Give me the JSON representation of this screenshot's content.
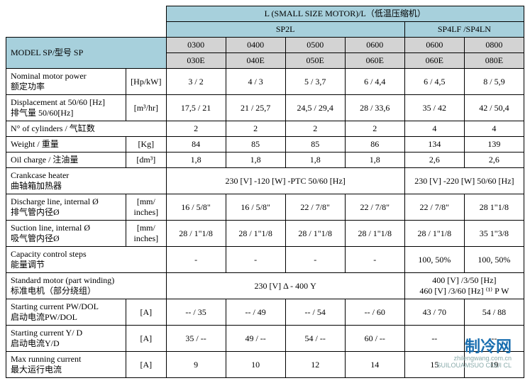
{
  "colors": {
    "header_blue": "#a7d0dc",
    "header_gray": "#d3d3d3",
    "border": "#000000",
    "background": "#ffffff"
  },
  "header": {
    "main_title": "L (SMALL SIZE MOTOR)/L（低温压缩机）",
    "series": [
      "SP2L",
      "SP4LF /SP4LN"
    ],
    "model_label": "MODEL SP/型号 SP",
    "col_codes_top": [
      "0300",
      "0400",
      "0500",
      "0600",
      "0600",
      "0800"
    ],
    "col_codes_bot": [
      "030E",
      "040E",
      "050E",
      "060E",
      "060E",
      "080E"
    ]
  },
  "rows": {
    "nominal_power": {
      "label": "Nominal motor power\n额定功率",
      "unit": "[Hp/kW]",
      "vals": [
        "3 / 2",
        "4 / 3",
        "5 / 3,7",
        "6 / 4,4",
        "6 / 4,5",
        "8 / 5,9"
      ]
    },
    "displacement": {
      "label": "Displacement at 50/60 [Hz]\n排气量 50/60[Hz]",
      "unit": "[m³/hr]",
      "vals": [
        "17,5 / 21",
        "21 / 25,7",
        "24,5 / 29,4",
        "28 / 33,6",
        "35 / 42",
        "42 / 50,4"
      ]
    },
    "cylinders": {
      "label": "N° of cylinders / 气缸数",
      "vals": [
        "2",
        "2",
        "2",
        "2",
        "4",
        "4"
      ]
    },
    "weight": {
      "label": "Weight / 重量",
      "unit": "[Kg]",
      "vals": [
        "84",
        "85",
        "85",
        "86",
        "134",
        "139"
      ]
    },
    "oil": {
      "label": "Oil charge / 注油量",
      "unit": "[dm³]",
      "vals": [
        "1,8",
        "1,8",
        "1,8",
        "1,8",
        "2,6",
        "2,6"
      ]
    },
    "crankcase": {
      "label": "Crankcase heater\n曲轴箱加热器",
      "left": "230 [V] -120 [W] -PTC 50/60 [Hz]",
      "right": "230 [V] -220 [W] 50/60 [Hz]"
    },
    "discharge": {
      "label": "Discharge line, internal Ø\n排气管内径Ø",
      "unit": "[mm/\ninches]",
      "vals": [
        "16 / 5/8\"",
        "16 / 5/8\"",
        "22 / 7/8\"",
        "22 / 7/8\"",
        "22 / 7/8\"",
        "28 1\"1/8"
      ]
    },
    "suction": {
      "label": "Suction line, internal Ø\n吸气管内径Ø",
      "unit": "[mm/\ninches]",
      "vals": [
        "28 / 1\"1/8",
        "28 / 1\"1/8",
        "28 / 1\"1/8",
        "28 / 1\"1/8",
        "28 / 1\"1/8",
        "35 1\"3/8"
      ]
    },
    "capacity": {
      "label": "Capacity control steps\n能量调节",
      "vals": [
        "-",
        "-",
        "-",
        "-",
        "100, 50%",
        "100, 50%"
      ]
    },
    "std_motor": {
      "label": "Standard motor (part winding)\n标准电机（部分绕组）",
      "left": "230 [V] Δ - 400 Y",
      "right": "400 [V] /3/50 [Hz]\n460 [V] /3/60 [Hz] ⁽¹⁾ P W"
    },
    "start_pw": {
      "label": "Starting current PW/DOL\n启动电流PW/DOL",
      "unit": "[A]",
      "vals": [
        "-- / 35",
        "-- / 49",
        "-- / 54",
        "-- / 60",
        "43 / 70",
        "54 / 88"
      ]
    },
    "start_yd": {
      "label": "Starting current Y/ D\n启动电流Y/D",
      "unit": "[A]",
      "vals": [
        "35 / --",
        "49 / --",
        "54 / --",
        "60 / --",
        "--",
        "--"
      ]
    },
    "max_run": {
      "label": "Max running current\n最大运行电流",
      "unit": "[A]",
      "vals": [
        "9",
        "10",
        "12",
        "14",
        "15",
        "19"
      ]
    }
  },
  "watermark": {
    "cn": "制冷网",
    "en": "zhilengwang.com.cn",
    "en2": "SUILOUAMSUO COUI CL"
  }
}
